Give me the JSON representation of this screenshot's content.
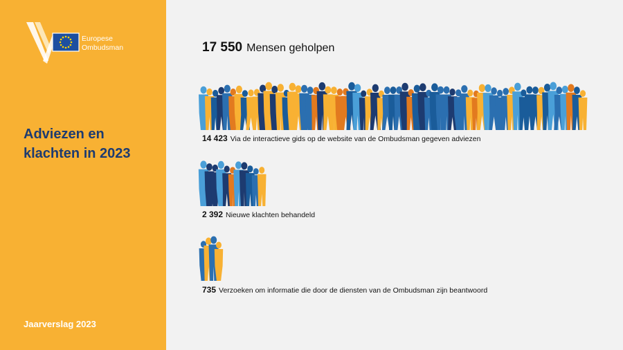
{
  "logo": {
    "line1": "Europese",
    "line2": "Ombudsman"
  },
  "sidebar": {
    "title": "Adviezen en klachten in 2023",
    "footer": "Jaarverslag 2023"
  },
  "headline": {
    "value": "17 550",
    "label": "Mensen geholpen"
  },
  "colors": {
    "sidebar": "#f8b133",
    "navy": "#1d3b70",
    "people": [
      "#2b6fb0",
      "#1d3b70",
      "#f8b133",
      "#4a9fd8",
      "#e27a1f",
      "#1a5c9a"
    ]
  },
  "chart_data": {
    "type": "bar",
    "title": "",
    "categories": [
      "Via de interactieve gids op de website van de Ombudsman gegeven adviezen",
      "Nieuwe klachten behandeld",
      "Verzoeken om informatie die door de diensten van de Ombudsman zijn beantwoord"
    ],
    "value_labels": [
      "14 423",
      "2 392",
      "735"
    ],
    "values": [
      14423,
      2392,
      735
    ],
    "total": 17550,
    "encoding": "pictogram crowd width proportional to value"
  }
}
